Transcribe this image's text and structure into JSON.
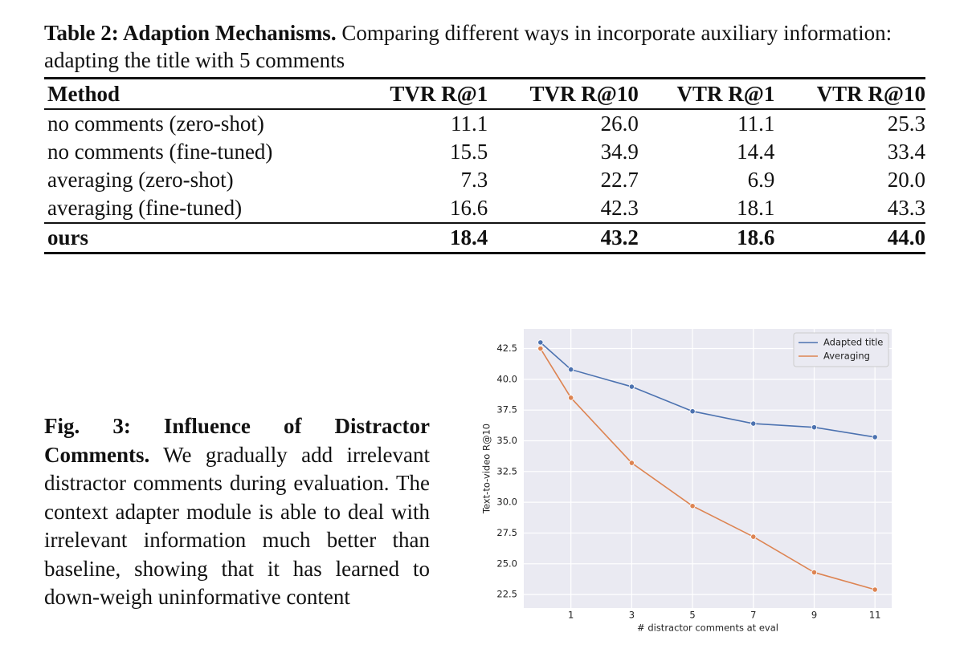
{
  "table": {
    "caption_label": "Table 2: Adaption Mechanisms.",
    "caption_text": "Comparing different ways in incorporate auxiliary information: adapting the title with 5 comments",
    "columns": [
      "Method",
      "TVR R@1",
      "TVR R@10",
      "VTR R@1",
      "VTR R@10"
    ],
    "rows": [
      [
        "no comments (zero-shot)",
        "11.1",
        "26.0",
        "11.1",
        "25.3"
      ],
      [
        "no comments (fine-tuned)",
        "15.5",
        "34.9",
        "14.4",
        "33.4"
      ],
      [
        "averaging (zero-shot)",
        "7.3",
        "22.7",
        "6.9",
        "20.0"
      ],
      [
        "averaging (fine-tuned)",
        "16.6",
        "42.3",
        "18.1",
        "43.3"
      ],
      [
        "ours",
        "18.4",
        "43.2",
        "18.6",
        "44.0"
      ]
    ]
  },
  "figure_caption": {
    "label": "Fig. 3:",
    "title": "Influence of Distractor Comments.",
    "text": "We gradually add irrelevant distractor comments during evaluation. The context adapter module is able to deal with irrelevant information much better than baseline, showing that it has learned to down-weigh uninformative content"
  },
  "chart_data": {
    "type": "line",
    "xlabel": "# distractor comments at eval",
    "ylabel": "Text-to-video R@10",
    "x": [
      0,
      1,
      3,
      5,
      7,
      9,
      11
    ],
    "series": [
      {
        "name": "Adapted title",
        "color": "#4c72b0",
        "values": [
          43.0,
          40.8,
          39.4,
          37.4,
          36.4,
          36.1,
          35.3
        ]
      },
      {
        "name": "Averaging",
        "color": "#dd8452",
        "values": [
          42.5,
          38.5,
          33.2,
          29.7,
          27.2,
          24.3,
          22.9
        ]
      }
    ],
    "xlim": [
      -0.55,
      11.55
    ],
    "xticks": [
      1,
      3,
      5,
      7,
      9,
      11
    ],
    "ylim": [
      21.4,
      44.1
    ],
    "yticks": [
      22.5,
      {
        "value": 25,
        "label": "25.0"
      },
      27.5,
      {
        "value": 30,
        "label": "30.0"
      },
      32.5,
      {
        "value": 35,
        "label": "35.0"
      },
      37.5,
      {
        "value": 40,
        "label": "40.0"
      },
      42.5
    ],
    "grid": true,
    "legend": "upper right"
  }
}
